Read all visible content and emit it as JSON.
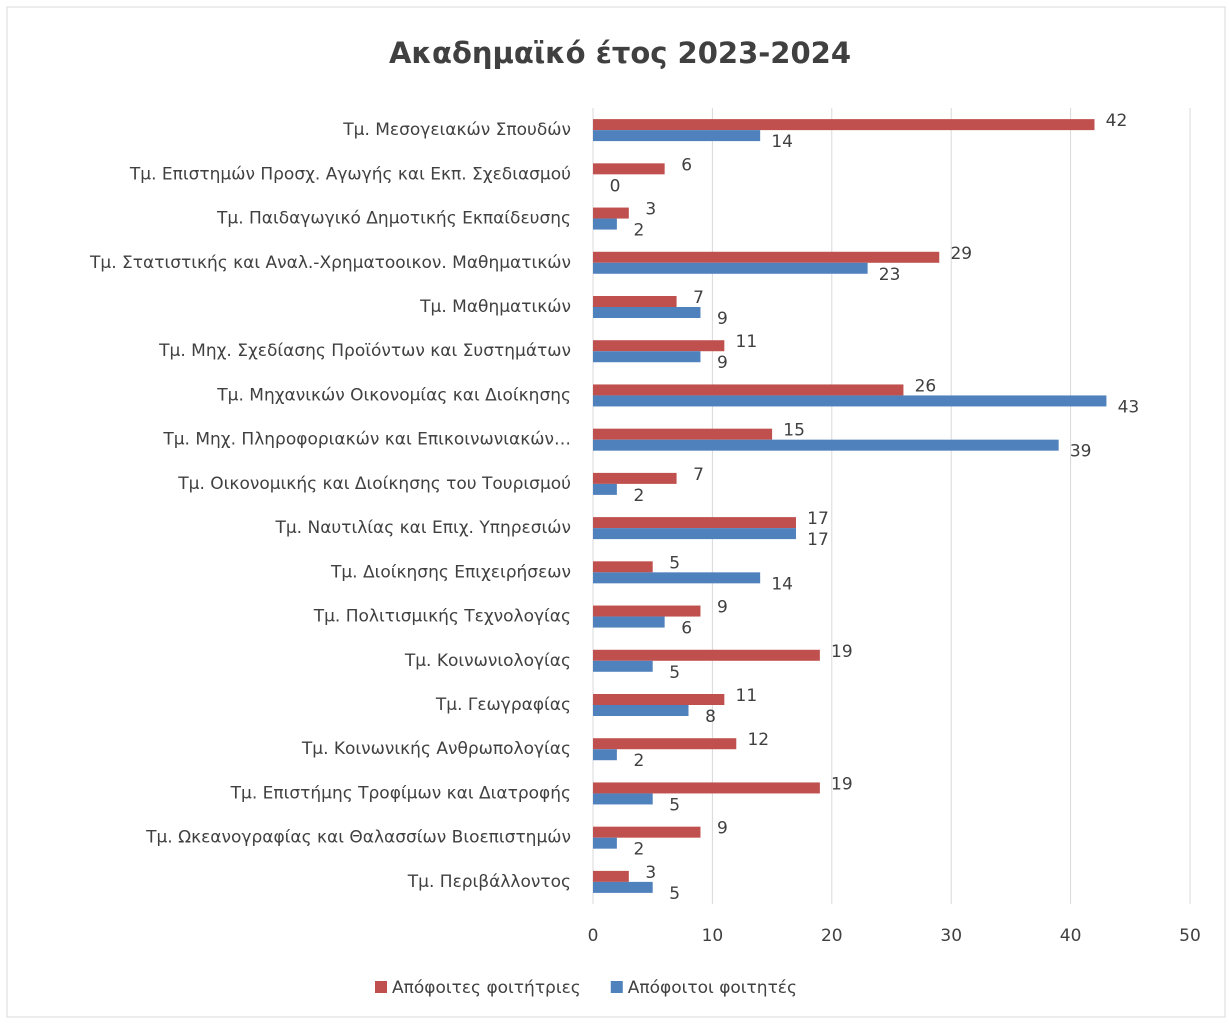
{
  "chart_data": {
    "type": "bar",
    "orientation": "horizontal",
    "title": "Ακαδημαϊκό έτος 2023-2024",
    "categories": [
      "Τμ. Μεσογειακών Σπουδών",
      "Τμ. Επιστημών Προσχ. Αγωγής και Εκπ. Σχεδιασμού",
      "Τμ. Παιδαγωγικό Δημοτικής Εκπαίδευσης",
      "Τμ. Στατιστικής και Αναλ.-Χρηματοοικον. Μαθηματικών",
      "Τμ. Μαθηματικών",
      "Τμ. Μηχ. Σχεδίασης Προϊόντων και Συστημάτων",
      "Τμ. Μηχανικών Οικονομίας και Διοίκησης",
      "Τμ. Μηχ. Πληροφοριακών και Επικοινωνιακών…",
      "Τμ. Οικονομικής και Διοίκησης του Τουρισμού",
      "Τμ. Ναυτιλίας και Επιχ. Υπηρεσιών",
      "Τμ. Διοίκησης Επιχειρήσεων",
      "Τμ. Πολιτισμικής Τεχνολογίας",
      "Τμ. Κοινωνιολογίας",
      "Τμ. Γεωγραφίας",
      "Τμ. Κοινωνικής Ανθρωπολογίας",
      "Τμ. Επιστήμης Τροφίμων και Διατροφής",
      "Τμ. Ωκεανογραφίας και Θαλασσίων Βιοεπιστημών",
      "Τμ. Περιβάλλοντος"
    ],
    "series": [
      {
        "name": "Απόφοιτες φοιτήτριες",
        "color": "#c0504d",
        "values": [
          42,
          6,
          3,
          29,
          7,
          11,
          26,
          15,
          7,
          17,
          5,
          9,
          19,
          11,
          12,
          19,
          9,
          3
        ]
      },
      {
        "name": "Απόφοιτοι φοιτητές",
        "color": "#4f81bd",
        "values": [
          14,
          0,
          2,
          23,
          9,
          9,
          43,
          39,
          2,
          17,
          14,
          6,
          5,
          8,
          2,
          5,
          2,
          5
        ]
      }
    ],
    "xlim": [
      0,
      50
    ],
    "xticks": [
      0,
      10,
      20,
      30,
      40,
      50
    ],
    "grid": true,
    "legend": "bottom"
  }
}
